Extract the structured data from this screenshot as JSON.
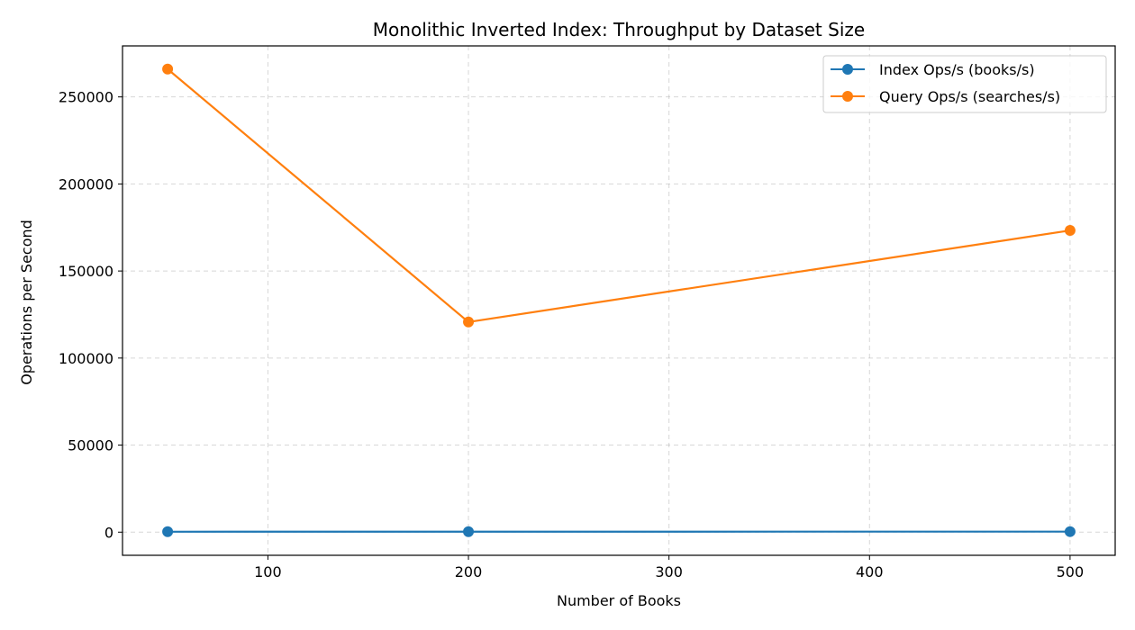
{
  "chart_data": {
    "type": "line",
    "title": "Monolithic Inverted Index: Throughput by Dataset Size",
    "xlabel": "Number of Books",
    "ylabel": "Operations per Second",
    "x": [
      50,
      200,
      500
    ],
    "xlim": [
      27.5,
      522.5
    ],
    "ylim": [
      -13300,
      279300
    ],
    "xticks": [
      100,
      200,
      300,
      400,
      500
    ],
    "yticks": [
      0,
      50000,
      100000,
      150000,
      200000,
      250000
    ],
    "grid": true,
    "legend_position": "top-right",
    "series": [
      {
        "name": "Index Ops/s (books/s)",
        "color": "#1f77b4",
        "values": [
          250,
          280,
          300
        ]
      },
      {
        "name": "Query Ops/s (searches/s)",
        "color": "#ff7f0e",
        "values": [
          266000,
          120700,
          173300
        ]
      }
    ]
  }
}
